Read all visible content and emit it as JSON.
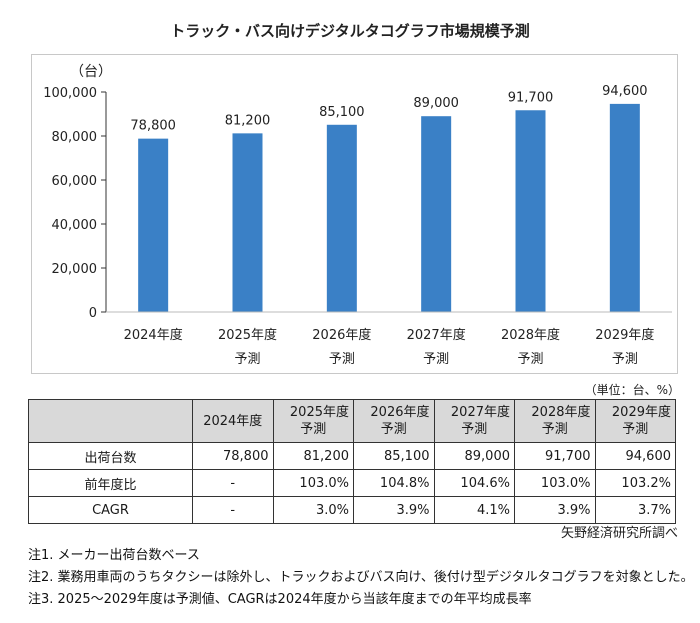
{
  "title": "トラック・バス向けデジタルタコグラフ市場規模予測",
  "chart_data": {
    "type": "bar",
    "title": "トラック・バス向けデジタルタコグラフ市場規模予測",
    "ylabel": "（台）",
    "xlabel": "",
    "categories": [
      [
        "2024年度",
        ""
      ],
      [
        "2025年度",
        "予測"
      ],
      [
        "2026年度",
        "予測"
      ],
      [
        "2027年度",
        "予測"
      ],
      [
        "2028年度",
        "予測"
      ],
      [
        "2029年度",
        "予測"
      ]
    ],
    "values": [
      78800,
      81200,
      85100,
      89000,
      91700,
      94600
    ],
    "data_labels": [
      "78,800",
      "81,200",
      "85,100",
      "89,000",
      "91,700",
      "94,600"
    ],
    "yticks": [
      0,
      20000,
      40000,
      60000,
      80000,
      100000
    ],
    "ytick_labels": [
      "0",
      "20,000",
      "40,000",
      "60,000",
      "80,000",
      "100,000"
    ],
    "ylim": [
      0,
      100000
    ],
    "grid": false,
    "legend": "none",
    "bar_color": "#3a80c6"
  },
  "table": {
    "unit_note": "（単位：台、%）",
    "headers": [
      [
        "2024年度",
        ""
      ],
      [
        "2025年度",
        "予測"
      ],
      [
        "2026年度",
        "予測"
      ],
      [
        "2027年度",
        "予測"
      ],
      [
        "2028年度",
        "予測"
      ],
      [
        "2029年度",
        "予測"
      ]
    ],
    "rows": [
      {
        "label": "出荷台数",
        "cells": [
          "78,800",
          "81,200",
          "85,100",
          "89,000",
          "91,700",
          "94,600"
        ]
      },
      {
        "label": "前年度比",
        "cells": [
          "-",
          "103.0%",
          "104.8%",
          "104.6%",
          "103.0%",
          "103.2%"
        ]
      },
      {
        "label": "CAGR",
        "cells": [
          "-",
          "3.0%",
          "3.9%",
          "4.1%",
          "3.9%",
          "3.7%"
        ]
      }
    ],
    "header_bg": "#d9d9d9"
  },
  "source": "矢野経済研究所調べ",
  "notes": [
    "注1.  メーカー出荷台数ベース",
    "注2.  業務用車両のうちタクシーは除外し、トラックおよびバス向け、後付け型デジタルタコグラフを対象とした。",
    "注3.  2025～2029年度は予測値、CAGRは2024年度から当該年度までの年平均成長率"
  ]
}
